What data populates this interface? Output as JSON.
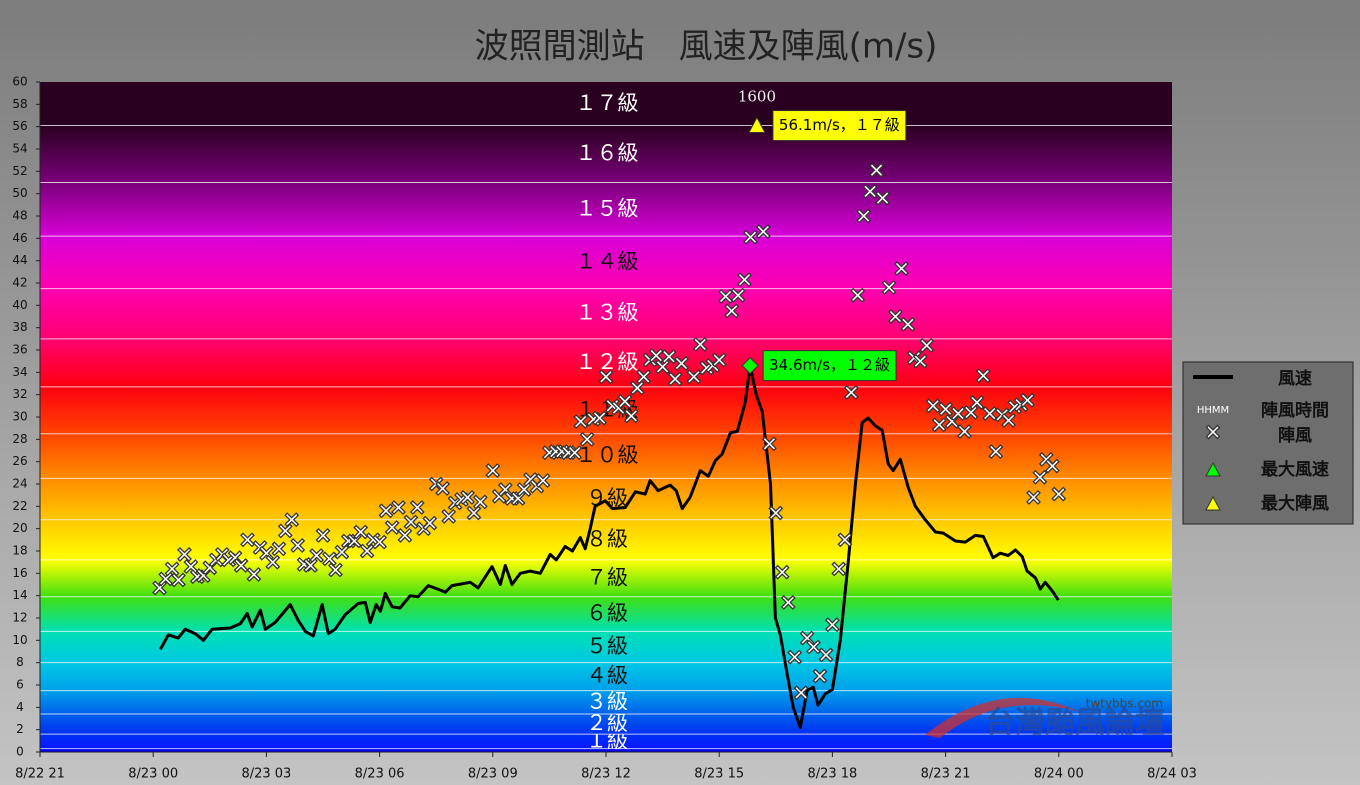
{
  "chart_data": {
    "type": "line",
    "title": "波照間測站　風速及陣風(m/s)",
    "xlim": [
      -3,
      27
    ],
    "xticks": [
      {
        "value": -3,
        "label": "8/22 21"
      },
      {
        "value": 0,
        "label": "8/23 00"
      },
      {
        "value": 3,
        "label": "8/23 03"
      },
      {
        "value": 6,
        "label": "8/23 06"
      },
      {
        "value": 9,
        "label": "8/23 09"
      },
      {
        "value": 12,
        "label": "8/23 12"
      },
      {
        "value": 15,
        "label": "8/23 15"
      },
      {
        "value": 18,
        "label": "8/23 18"
      },
      {
        "value": 21,
        "label": "8/23 21"
      },
      {
        "value": 24,
        "label": "8/24 00"
      },
      {
        "value": 27,
        "label": "8/24 03"
      }
    ],
    "ylim": [
      0,
      60
    ],
    "yticks": [
      0,
      2,
      4,
      6,
      8,
      10,
      12,
      14,
      16,
      18,
      20,
      22,
      24,
      26,
      28,
      30,
      32,
      34,
      36,
      38,
      40,
      42,
      44,
      46,
      48,
      50,
      52,
      54,
      56,
      58,
      60
    ],
    "levels": [
      {
        "label": "１級",
        "range": [
          0.3,
          1.6
        ],
        "color": "#0818ff"
      },
      {
        "label": "２級",
        "range": [
          1.6,
          3.4
        ],
        "color": "#0030f4"
      },
      {
        "label": "３級",
        "range": [
          3.4,
          5.5
        ],
        "color": "#0060ea"
      },
      {
        "label": "４級",
        "range": [
          5.5,
          8.0
        ],
        "color": "#00a0ea"
      },
      {
        "label": "５級",
        "range": [
          8.0,
          10.8
        ],
        "color": "#00c8e4"
      },
      {
        "label": "６級",
        "range": [
          10.8,
          13.9
        ],
        "color": "#00e0b4"
      },
      {
        "label": "７級",
        "range": [
          13.9,
          17.2
        ],
        "color": "#40e010"
      },
      {
        "label": "８級",
        "range": [
          17.2,
          20.8
        ],
        "color": "#ffff00"
      },
      {
        "label": "９級",
        "range": [
          20.8,
          24.5
        ],
        "color": "#ffc800"
      },
      {
        "label": "１０級",
        "range": [
          24.5,
          28.5
        ],
        "color": "#ff8c00"
      },
      {
        "label": "１１級",
        "range": [
          28.5,
          32.7
        ],
        "color": "#ff4400"
      },
      {
        "label": "１２級",
        "range": [
          32.7,
          37.0
        ],
        "color": "#ff0010"
      },
      {
        "label": "１３級",
        "range": [
          37.0,
          41.5
        ],
        "color": "#ff0070"
      },
      {
        "label": "１４級",
        "range": [
          41.5,
          46.2
        ],
        "color": "#ff00b0"
      },
      {
        "label": "１５級",
        "range": [
          46.2,
          51.0
        ],
        "color": "#d800d8"
      },
      {
        "label": "１６級",
        "range": [
          51.0,
          56.1
        ],
        "color": "#7a007a"
      },
      {
        "label": "１７級",
        "range": [
          56.1,
          61.2
        ],
        "color": "#2a0020"
      }
    ],
    "series": [
      {
        "name": "風速",
        "color": "#000000",
        "x": [
          0.19,
          0.4,
          0.66,
          0.85,
          1.11,
          1.33,
          1.56,
          2.04,
          2.31,
          2.49,
          2.62,
          2.84,
          2.97,
          3.23,
          3.63,
          3.84,
          4.03,
          4.24,
          4.48,
          4.64,
          4.82,
          5.09,
          5.43,
          5.62,
          5.75,
          5.91,
          6.02,
          6.15,
          6.33,
          6.54,
          6.81,
          7.02,
          7.29,
          7.61,
          7.74,
          7.92,
          8.4,
          8.61,
          8.98,
          9.2,
          9.33,
          9.51,
          9.73,
          9.99,
          10.26,
          10.52,
          10.68,
          10.92,
          11.11,
          11.32,
          11.45,
          11.58,
          11.71,
          11.98,
          12.17,
          12.51,
          12.78,
          13.04,
          13.17,
          13.38,
          13.7,
          13.86,
          14.02,
          14.23,
          14.5,
          14.71,
          14.9,
          15.08,
          15.3,
          15.48,
          15.69,
          15.82,
          15.98,
          16.14,
          16.36,
          16.49,
          16.62,
          16.8,
          16.96,
          17.15,
          17.33,
          17.49,
          17.62,
          17.81,
          18.0,
          18.21,
          18.42,
          18.61,
          18.79,
          18.95,
          19.14,
          19.32,
          19.48,
          19.61,
          19.8,
          20.01,
          20.2,
          20.46,
          20.73,
          20.94,
          21.26,
          21.52,
          21.79,
          22.0,
          22.26,
          22.45,
          22.66,
          22.85,
          23.03,
          23.16,
          23.38,
          23.51,
          23.64,
          23.83,
          23.99
        ],
        "values": [
          9.2,
          10.5,
          10.2,
          11.0,
          10.6,
          10.0,
          11.0,
          11.1,
          11.5,
          12.4,
          11.2,
          12.7,
          11.0,
          11.6,
          13.2,
          11.8,
          10.8,
          10.4,
          13.2,
          10.6,
          11.0,
          12.3,
          13.3,
          13.4,
          11.6,
          13.2,
          12.6,
          14.2,
          13.0,
          12.9,
          14.0,
          13.9,
          14.9,
          14.5,
          14.3,
          14.9,
          15.2,
          14.7,
          16.6,
          15.0,
          16.7,
          15.0,
          16.0,
          16.2,
          16.0,
          17.7,
          17.2,
          18.4,
          18.0,
          19.2,
          18.2,
          20.0,
          22.0,
          22.5,
          21.8,
          21.9,
          23.3,
          23.1,
          24.3,
          23.4,
          23.9,
          23.4,
          21.8,
          22.8,
          25.2,
          24.7,
          26.1,
          26.7,
          28.6,
          28.7,
          31.3,
          34.6,
          32.0,
          30.5,
          24.0,
          12.0,
          10.5,
          7.0,
          4.0,
          2.2,
          5.5,
          5.8,
          4.2,
          5.2,
          5.6,
          10.0,
          17.0,
          24.0,
          29.5,
          29.9,
          29.2,
          28.8,
          25.8,
          25.2,
          26.2,
          23.7,
          22.0,
          20.8,
          19.7,
          19.6,
          18.9,
          18.8,
          19.4,
          19.3,
          17.4,
          17.8,
          17.6,
          18.1,
          17.5,
          16.2,
          15.6,
          14.6,
          15.2,
          14.4,
          13.6
        ]
      },
      {
        "name": "陣風",
        "type": "scatter",
        "color": "#ffffff",
        "x": [
          0.17,
          0.33,
          0.5,
          0.67,
          0.83,
          1,
          1.17,
          1.33,
          1.5,
          1.67,
          1.83,
          2,
          2.17,
          2.33,
          2.5,
          2.67,
          2.83,
          3,
          3.17,
          3.33,
          3.5,
          3.67,
          3.83,
          4,
          4.17,
          4.33,
          4.5,
          4.67,
          4.83,
          5,
          5.17,
          5.33,
          5.5,
          5.67,
          5.83,
          6,
          6.17,
          6.33,
          6.5,
          6.67,
          6.83,
          7,
          7.17,
          7.33,
          7.5,
          7.67,
          7.83,
          8,
          8.17,
          8.33,
          8.5,
          8.67,
          9,
          9.17,
          9.33,
          9.5,
          9.67,
          9.83,
          10,
          10.17,
          10.33,
          10.5,
          10.67,
          10.83,
          11,
          11.17,
          11.33,
          11.5,
          11.67,
          11.83,
          12,
          12.17,
          12.33,
          12.5,
          12.67,
          12.83,
          13,
          13.17,
          13.33,
          13.5,
          13.67,
          13.83,
          14,
          14.33,
          14.5,
          14.67,
          14.83,
          15,
          15.17,
          15.33,
          15.5,
          15.67,
          15.83,
          16.17,
          16.33,
          16.5,
          16.67,
          16.83,
          17,
          17.17,
          17.33,
          17.5,
          17.67,
          17.83,
          18,
          18.17,
          18.33,
          18.5,
          18.67,
          18.83,
          19,
          19.17,
          19.33,
          19.5,
          19.67,
          19.83,
          20,
          20.17,
          20.33,
          20.5,
          20.67,
          20.83,
          21,
          21.17,
          21.33,
          21.5,
          21.67,
          21.83,
          22,
          22.17,
          22.33,
          22.5,
          22.67,
          22.83,
          23,
          23.17,
          23.33,
          23.5,
          23.67,
          23.83,
          24
        ],
        "values": [
          14.7,
          15.5,
          16.4,
          15.4,
          17.7,
          16.6,
          15.7,
          15.8,
          16.5,
          17.2,
          17.7,
          17.2,
          17.4,
          16.7,
          19.0,
          15.9,
          18.3,
          17.8,
          17.0,
          18.2,
          19.8,
          20.8,
          18.5,
          16.8,
          16.7,
          17.6,
          19.4,
          17.3,
          16.3,
          17.9,
          18.9,
          18.9,
          19.7,
          18.0,
          19.0,
          18.8,
          21.6,
          20.1,
          21.9,
          19.4,
          20.6,
          21.9,
          20.0,
          20.5,
          24.0,
          23.6,
          21.1,
          22.3,
          22.6,
          22.8,
          21.4,
          22.4,
          25.2,
          22.9,
          23.5,
          22.7,
          22.7,
          23.5,
          24.4,
          23.8,
          24.3,
          26.8,
          26.9,
          26.9,
          26.8,
          26.8,
          29.6,
          28.0,
          29.8,
          29.9,
          33.6,
          31.0,
          30.8,
          31.4,
          30.1,
          32.6,
          33.6,
          35.1,
          35.5,
          34.5,
          35.4,
          33.4,
          34.8,
          33.6,
          36.5,
          34.4,
          34.6,
          35.1,
          40.8,
          39.5,
          40.9,
          42.3,
          46.1,
          46.6,
          27.6,
          21.4,
          16.1,
          13.4,
          8.5,
          5.3,
          10.2,
          9.4,
          6.8,
          8.7,
          11.4,
          16.4,
          19.0,
          32.2,
          40.9,
          48.0,
          50.2,
          52.1,
          49.6,
          41.6,
          39.0,
          43.3,
          38.3,
          35.3,
          35.0,
          36.4,
          31.0,
          29.3,
          30.7,
          29.6,
          30.3,
          28.7,
          30.4,
          31.3,
          33.7,
          30.3,
          26.9,
          30.2,
          29.7,
          30.9,
          31.1,
          31.5,
          22.8,
          24.6,
          26.2,
          25.6,
          23.1
        ]
      }
    ],
    "time_legend": {
      "symbol": "HHMM",
      "name": "陣風時間"
    },
    "max_wind": {
      "name": "最大風速",
      "x": 15.82,
      "value": 34.6,
      "label": "34.6m/s，１２級",
      "color": "#00ff00"
    },
    "max_gust": {
      "name": "最大陣風",
      "x": 16,
      "value": 56.1,
      "label": "56.1m/s，１７級",
      "time": "1600",
      "color": "#ffff00"
    },
    "watermark": {
      "site": "twtybbs.com",
      "name": "台灣颱風論壇"
    }
  }
}
